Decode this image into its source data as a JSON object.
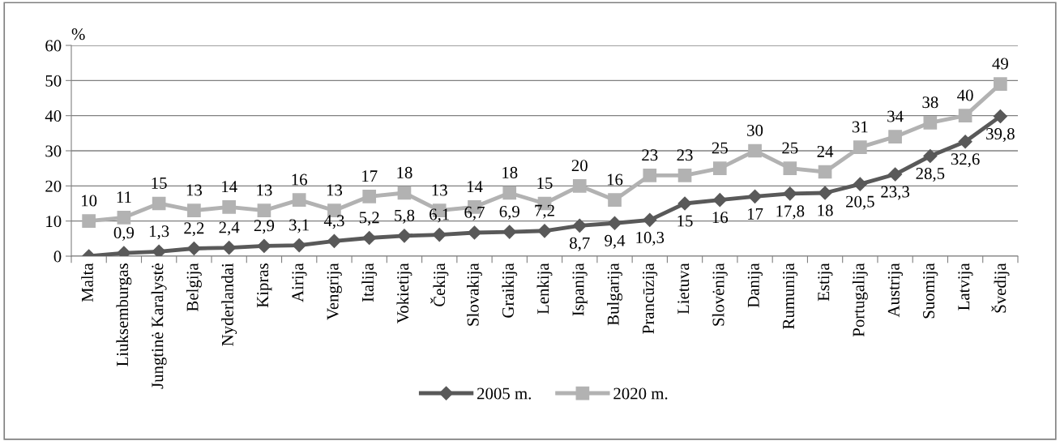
{
  "chart_data": {
    "type": "line",
    "categories": [
      "Malta",
      "Liuksemburgas",
      "Jungtinė Karalystė",
      "Belgija",
      "Nyderlandai",
      "Kipras",
      "Airija",
      "Vengrija",
      "Italija",
      "Vokietija",
      "Čekija",
      "Slovakija",
      "Graikija",
      "Lenkija",
      "Ispanija",
      "Bulgarija",
      "Prancūzija",
      "Lietuva",
      "Slovėnija",
      "Danija",
      "Rumunija",
      "Estija",
      "Portugalija",
      "Austrija",
      "Suomija",
      "Latvija",
      "Švedija"
    ],
    "ylabel": "%",
    "ylim": [
      0,
      60
    ],
    "yticks": [
      0,
      10,
      20,
      30,
      40,
      50,
      60
    ],
    "grid": "y",
    "legend": "bottom",
    "line_style": "solid",
    "series": [
      {
        "name": "2005 m.",
        "color": "#595959",
        "marker": "diamond",
        "values": [
          0,
          0.9,
          1.3,
          2.2,
          2.4,
          2.9,
          3.1,
          4.3,
          5.2,
          5.8,
          6.1,
          6.7,
          6.9,
          7.2,
          8.7,
          9.4,
          10.3,
          15,
          16,
          17,
          17.8,
          18,
          20.5,
          23.3,
          28.5,
          32.6,
          39.8
        ],
        "value_labels": [
          null,
          "0,9",
          "1,3",
          "2,2",
          "2,4",
          "2,9",
          "3,1",
          "4,3",
          "5,2",
          "5,8",
          "6,1",
          "6,7",
          "6,9",
          "7,2",
          "8,7",
          "9,4",
          "10,3",
          "15",
          "16",
          "17",
          "17,8",
          "18",
          "20,5",
          "23,3",
          "28,5",
          "32,6",
          "39,8"
        ]
      },
      {
        "name": "2020 m.",
        "color": "#b2b2b2",
        "marker": "square",
        "values": [
          10,
          11,
          15,
          13,
          14,
          13,
          16,
          13,
          17,
          18,
          13,
          14,
          18,
          15,
          20,
          16,
          23,
          23,
          25,
          30,
          25,
          24,
          31,
          34,
          38,
          40,
          49
        ],
        "value_labels": [
          "10",
          "11",
          "15",
          "13",
          "14",
          "13",
          "16",
          "13",
          "17",
          "18",
          "13",
          "14",
          "18",
          "15",
          "20",
          "16",
          "23",
          "23",
          "25",
          "30",
          "25",
          "24",
          "31",
          "34",
          "38",
          "40",
          "49"
        ]
      }
    ]
  }
}
